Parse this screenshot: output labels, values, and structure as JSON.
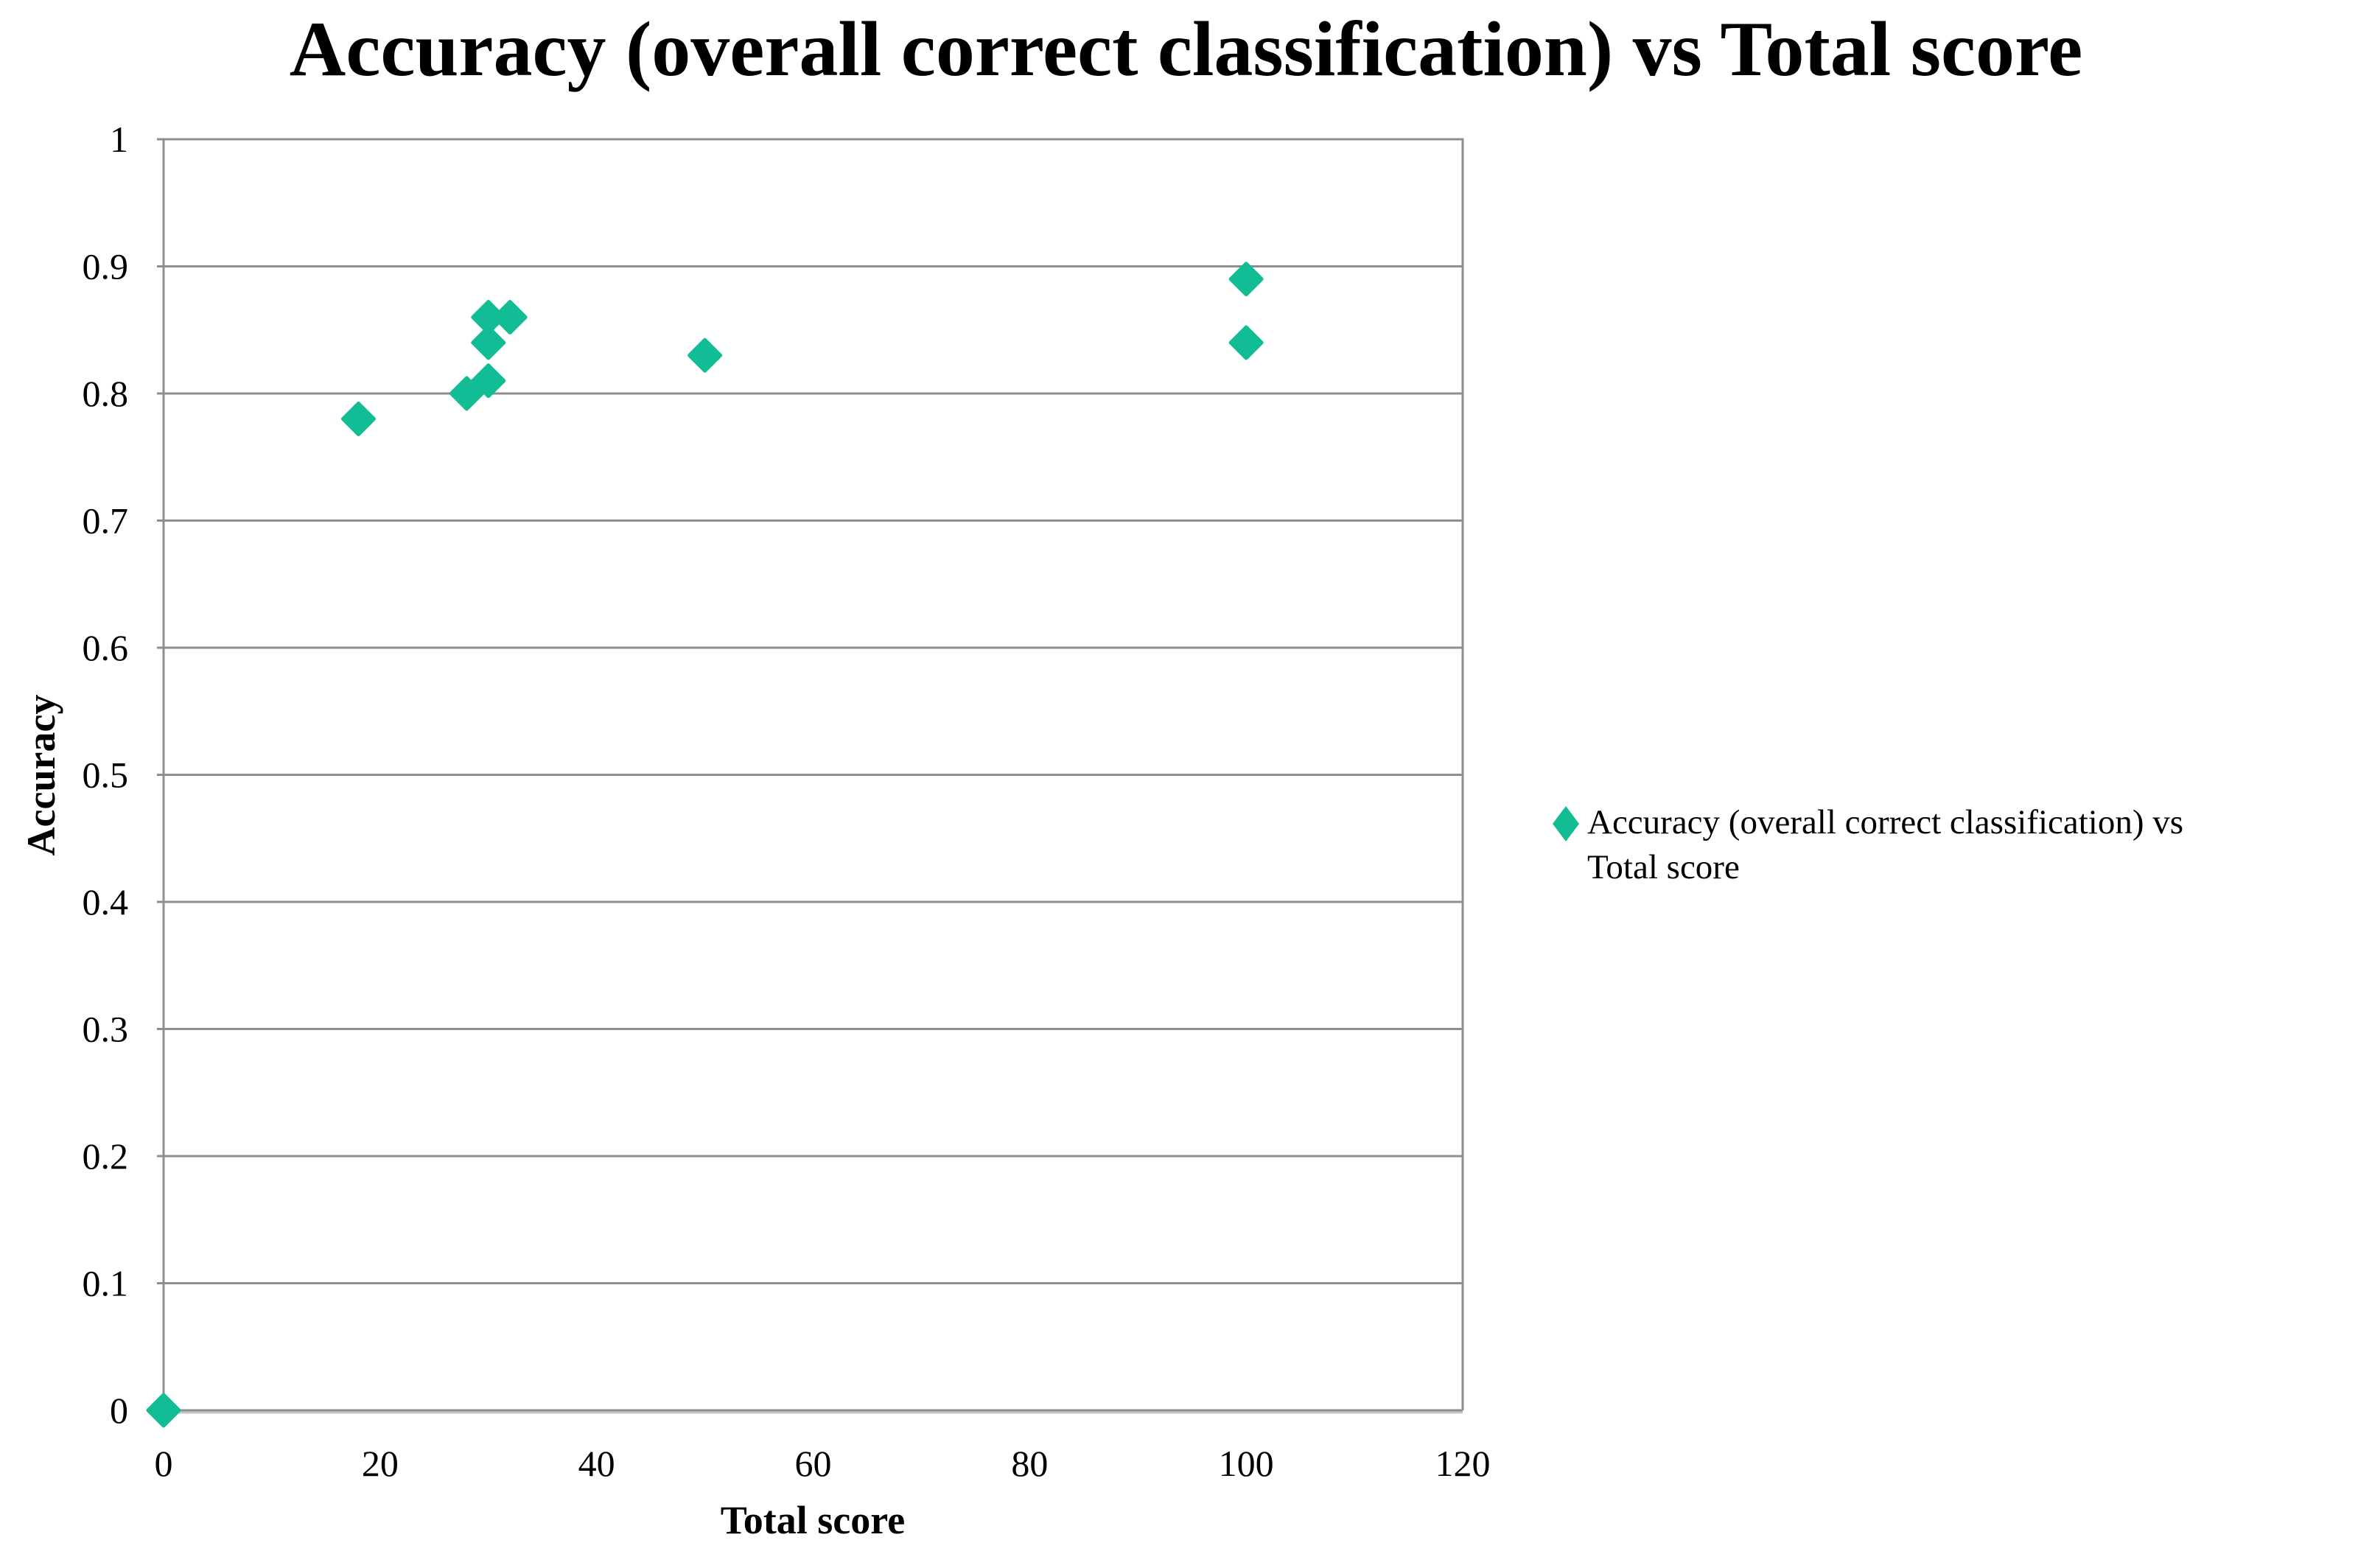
{
  "chart_data": {
    "type": "scatter",
    "title": "Accuracy (overall correct classification) vs Total score",
    "xlabel": "Total score",
    "ylabel": "Accuracy",
    "xlim": [
      0,
      120
    ],
    "ylim": [
      0,
      1
    ],
    "x_ticks": [
      0,
      20,
      40,
      60,
      80,
      100,
      120
    ],
    "y_ticks": [
      "0",
      "0.1",
      "0.2",
      "0.3",
      "0.4",
      "0.5",
      "0.6",
      "0.7",
      "0.8",
      "0.9",
      "1"
    ],
    "grid": "horizontal-only",
    "legend_position": "right-middle",
    "series": [
      {
        "name": "Accuracy (overall correct classification) vs Total score",
        "marker": "diamond",
        "color": "#12BD95",
        "points": [
          [
            0,
            0
          ],
          [
            18,
            0.78
          ],
          [
            28,
            0.8
          ],
          [
            30,
            0.81
          ],
          [
            30,
            0.84
          ],
          [
            30,
            0.86
          ],
          [
            32,
            0.86
          ],
          [
            50,
            0.83
          ],
          [
            100,
            0.84
          ],
          [
            100,
            0.89
          ]
        ]
      }
    ]
  },
  "legend": {
    "line1": "Accuracy (overall correct classification) vs",
    "line2": "Total score"
  },
  "colors": {
    "marker": "#12BD95",
    "gridline": "#8e8e8e",
    "axis_shadow": "#c6c6c6",
    "text": "#000000",
    "background": "#ffffff"
  }
}
